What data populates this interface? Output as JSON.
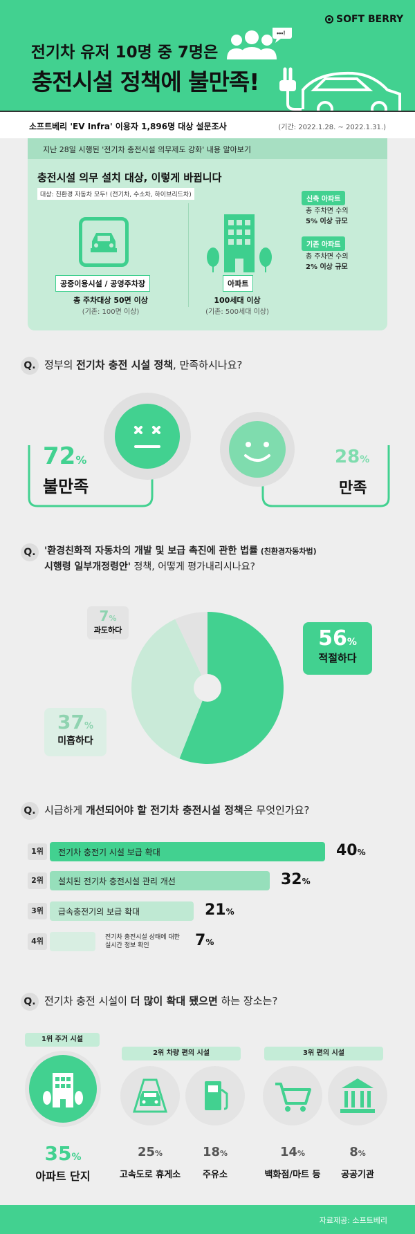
{
  "brand": "SOFT BERRY",
  "title_line1": "전기차 유저 10명 중 7명은",
  "title_line2": "충전시설 정책에 불만족!",
  "survey": {
    "left": "소프트베리 'EV Infra' 이용자 1,896명 대상 설문조사",
    "right": "(기간: 2022.1.28. ~ 2022.1.31.)"
  },
  "info": {
    "top": "지난 28일 시행된 '전기차 충전시설 의무제도 강화' 내용 알아보기",
    "title": "충전시설 의무 설치 대상, 이렇게 바뀝니다",
    "sub": "대상: 친환경 자동차 모두! (전기차, 수소차, 하이브리드차)",
    "public_label": "공중이용시설 / 공영주차장",
    "public_cap": "총 주차대상 50면 이상",
    "public_old": "(기존: 100면 이상)",
    "apt_label": "아파트",
    "apt_cap": "100세대 이상",
    "apt_old": "(기존: 500세대 이상)",
    "new_tag": "신축 아파트",
    "new_txt1": "총 주차면 수의",
    "new_txt2": "5% 이상 규모",
    "old_tag": "기존 아파트",
    "old_txt1": "총 주차면 수의",
    "old_txt2": "2% 이상 규모"
  },
  "q_mark": "Q.",
  "q1": {
    "pre": "정부의 ",
    "bold": "전기차 충전 시설 정책",
    "post": ", 만족하시나요?"
  },
  "sat": {
    "unsat_pct": "72",
    "unsat_lbl": "불만족",
    "sat_pct": "28",
    "sat_lbl": "만족",
    "pct_sign": "%"
  },
  "q2": {
    "l1": "'환경친화적 자동차의 개발 및 보급 촉진에 관한 법률",
    "l1s": " (친환경자동차법)",
    "l2b": "시행령 일부개정령안'",
    "l2": " 정책, 어떻게 평가내리시나요?"
  },
  "chart_data": {
    "type": "pie",
    "categories": [
      "적절하다",
      "미흡하다",
      "과도하다"
    ],
    "values": [
      56,
      37,
      7
    ],
    "colors": [
      "#42d190",
      "#c9ead8",
      "#e3e3e3"
    ]
  },
  "q3": {
    "pre": "시급하게 ",
    "bold": "개선되어야 할 전기차 충전시설 정책",
    "post": "은 무엇인가요?"
  },
  "ranks": [
    {
      "rank": "1위",
      "label": "전기차 충전기 시설 보급 확대",
      "pct": "40"
    },
    {
      "rank": "2위",
      "label": "설치된 전기차 충전시설 관리 개선",
      "pct": "32"
    },
    {
      "rank": "3위",
      "label": "급속충전기의 보급 확대",
      "pct": "21"
    },
    {
      "rank": "4위",
      "label1": "전기차 충전시설 상태에 대한",
      "label2": "실시간 정보 확인",
      "pct": "7"
    }
  ],
  "q4": {
    "pre": "전기차 충전 시설이 ",
    "bold": "더 많이 확대 됐으면",
    "post": " 하는 장소는?"
  },
  "places": {
    "h1": "1위  주거 시설",
    "h2": "2위  차량 편의 시설",
    "h3": "3위  편의 시설",
    "p1": "35",
    "l1": "아파트 단지",
    "p2": "25",
    "l2": "고속도로 휴게소",
    "p3": "18",
    "l3": "주유소",
    "p4": "14",
    "l4": "백화점/마트 등",
    "p5": "8",
    "l5": "공공기관"
  },
  "footer": "자료제공: 소프트베리"
}
